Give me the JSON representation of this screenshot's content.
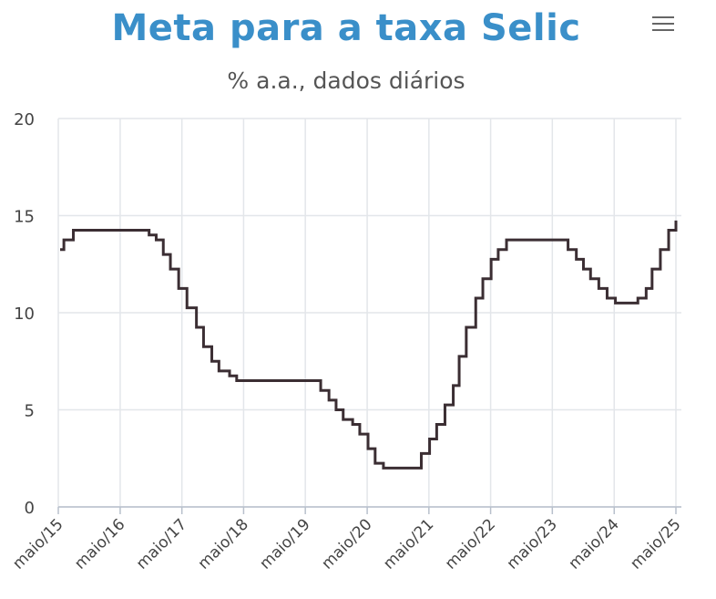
{
  "header": {
    "title": "Meta para a taxa Selic",
    "subtitle": "% a.a., dados diários"
  },
  "menu": {
    "icon": "hamburger-menu-icon"
  },
  "colors": {
    "title": "#3a8fc9",
    "line": "#3b2e33",
    "grid": "#e3e6ea"
  },
  "chart_data": {
    "type": "line",
    "title": "Meta para a taxa Selic",
    "subtitle": "% a.a., dados diários",
    "xlabel": "",
    "ylabel": "",
    "ylim": [
      0,
      20
    ],
    "yticks": [
      0,
      5,
      10,
      15,
      20
    ],
    "xticks": [
      "maio/15",
      "maio/16",
      "maio/17",
      "maio/18",
      "maio/19",
      "maio/20",
      "maio/21",
      "maio/22",
      "maio/23",
      "maio/24",
      "maio/25"
    ],
    "grid": true,
    "legend": "none",
    "series": [
      {
        "step": true,
        "points": [
          [
            "2015-05-01",
            13.25
          ],
          [
            "2015-06-03",
            13.75
          ],
          [
            "2015-07-29",
            14.25
          ],
          [
            "2016-10-19",
            14.0
          ],
          [
            "2016-11-30",
            13.75
          ],
          [
            "2017-01-11",
            13.0
          ],
          [
            "2017-02-22",
            12.25
          ],
          [
            "2017-04-12",
            11.25
          ],
          [
            "2017-05-31",
            10.25
          ],
          [
            "2017-07-26",
            9.25
          ],
          [
            "2017-09-06",
            8.25
          ],
          [
            "2017-10-25",
            7.5
          ],
          [
            "2017-12-06",
            7.0
          ],
          [
            "2018-02-07",
            6.75
          ],
          [
            "2018-03-21",
            6.5
          ],
          [
            "2019-07-31",
            6.0
          ],
          [
            "2019-09-18",
            5.5
          ],
          [
            "2019-10-30",
            5.0
          ],
          [
            "2019-12-11",
            4.5
          ],
          [
            "2020-02-05",
            4.25
          ],
          [
            "2020-03-18",
            3.75
          ],
          [
            "2020-05-06",
            3.0
          ],
          [
            "2020-06-17",
            2.25
          ],
          [
            "2020-08-05",
            2.0
          ],
          [
            "2021-03-17",
            2.75
          ],
          [
            "2021-05-05",
            3.5
          ],
          [
            "2021-06-16",
            4.25
          ],
          [
            "2021-08-04",
            5.25
          ],
          [
            "2021-09-22",
            6.25
          ],
          [
            "2021-10-27",
            7.75
          ],
          [
            "2021-12-08",
            9.25
          ],
          [
            "2022-02-02",
            10.75
          ],
          [
            "2022-03-16",
            11.75
          ],
          [
            "2022-05-04",
            12.75
          ],
          [
            "2022-06-15",
            13.25
          ],
          [
            "2022-08-03",
            13.75
          ],
          [
            "2023-08-02",
            13.25
          ],
          [
            "2023-09-20",
            12.75
          ],
          [
            "2023-11-01",
            12.25
          ],
          [
            "2023-12-13",
            11.75
          ],
          [
            "2024-01-31",
            11.25
          ],
          [
            "2024-03-20",
            10.75
          ],
          [
            "2024-05-08",
            10.5
          ],
          [
            "2024-09-18",
            10.75
          ],
          [
            "2024-11-06",
            11.25
          ],
          [
            "2024-12-11",
            12.25
          ],
          [
            "2025-01-29",
            13.25
          ],
          [
            "2025-03-19",
            14.25
          ],
          [
            "2025-05-07",
            14.75
          ]
        ]
      }
    ]
  }
}
